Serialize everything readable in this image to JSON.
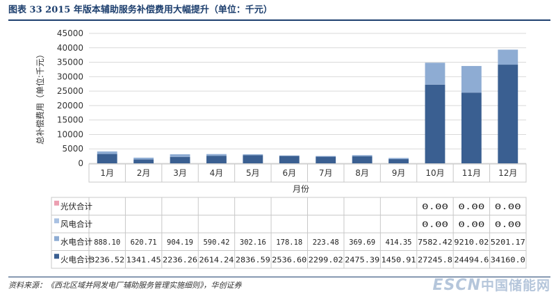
{
  "header": {
    "title": "图表 33   2015 年版本辅助服务补偿费用大幅提升（单位：千元）"
  },
  "footer": {
    "source": "资料来源：《西北区域并网发电厂辅助服务管理实施细则》，华创证券"
  },
  "watermark": {
    "latin": "ESCN",
    "cjk": "中国储能网"
  },
  "colors": {
    "thermal": "#3a5f91",
    "hydro": "#8eacd3",
    "wind": "#a9c1e2",
    "solar": "#ec9fb1",
    "grid": "#d9d9d9",
    "title": "#1d3f6e"
  },
  "chart_data": {
    "type": "bar",
    "stacked": true,
    "ylabel": "总补偿费用（单位:千元）",
    "xlabel": "月份",
    "ylim": [
      0,
      45000
    ],
    "yticks": [
      "45000",
      "40000",
      "35000",
      "30000",
      "25000",
      "20000",
      "15000",
      "10000",
      "5000",
      "0"
    ],
    "grid": true,
    "categories": [
      "1月",
      "2月",
      "3月",
      "4月",
      "5月",
      "6月",
      "7月",
      "8月",
      "9月",
      "10月",
      "11月",
      "12月"
    ],
    "series": [
      {
        "name": "光伏合计",
        "values": [
          null,
          null,
          null,
          null,
          null,
          null,
          null,
          null,
          null,
          0,
          0,
          0
        ],
        "display": [
          "",
          "",
          "",
          "",
          "",
          "",
          "",
          "",
          "",
          "0.00",
          "0.00",
          "0.00"
        ]
      },
      {
        "name": "风电合计",
        "values": [
          null,
          null,
          null,
          null,
          null,
          null,
          null,
          null,
          null,
          0,
          0,
          0
        ],
        "display": [
          "",
          "",
          "",
          "",
          "",
          "",
          "",
          "",
          "",
          "0.00",
          "0.00",
          "0.00"
        ]
      },
      {
        "name": "水电合计",
        "values": [
          888.1,
          620.71,
          904.19,
          590.42,
          302.16,
          178.18,
          223.48,
          369.69,
          414.35,
          7582.42,
          9210.02,
          5201.17
        ],
        "display": [
          "888.10",
          "620.71",
          "904.19",
          "590.42",
          "302.16",
          "178.18",
          "223.48",
          "369.69",
          "414.35",
          "7582.42",
          "9210.02",
          "5201.17"
        ]
      },
      {
        "name": "火电合计",
        "values": [
          3236.52,
          1341.45,
          2236.26,
          2614.24,
          2836.59,
          2536.6,
          2299.02,
          2475.39,
          1450.91,
          27245.8,
          24494.6,
          34160.0
        ],
        "display": [
          "3236.52",
          "1341.45",
          "2236.26",
          "2614.24",
          "2836.59",
          "2536.60",
          "2299.02",
          "2475.39",
          "1450.91",
          "27245.8",
          "24494.6",
          "34160.0"
        ]
      }
    ]
  }
}
